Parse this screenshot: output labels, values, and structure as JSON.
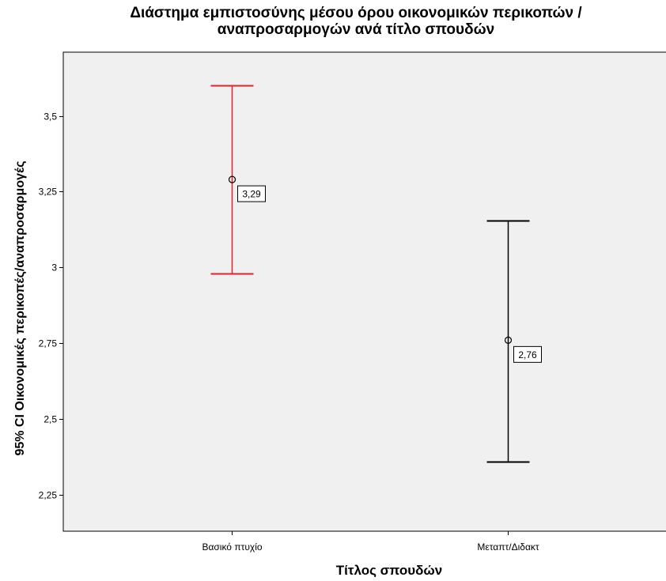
{
  "chart_data": {
    "type": "errorbar",
    "title": "Διάστημα εμπιστοσύνης μέσου όρου οικονομικών περικοπών / \nαναπροσαρμογών ανά τίτλο σπουδών",
    "xlabel": "Τίτλος σπουδών",
    "ylabel": "95% CI Οικονομικές περικοπές/αναπροσαρμογές",
    "categories": [
      "Βασικό πτυχίο",
      "Μεταπτ/Διδακτ"
    ],
    "means": [
      3.29,
      2.76
    ],
    "lower": [
      2.98,
      2.36
    ],
    "upper": [
      3.6,
      3.155
    ],
    "data_labels": [
      "3,29",
      "2,76"
    ],
    "ylim": [
      2.13,
      3.71
    ],
    "yticks": [
      2.25,
      2.5,
      2.75,
      3,
      3.25,
      3.5
    ],
    "ytick_labels": [
      "2,25",
      "2,5",
      "2,75",
      "3",
      "3,25",
      "3,5"
    ],
    "colors": [
      "#e8202a",
      "#000000"
    ],
    "plot_background": "#f0f0f0",
    "grid": false,
    "legend": "none"
  }
}
